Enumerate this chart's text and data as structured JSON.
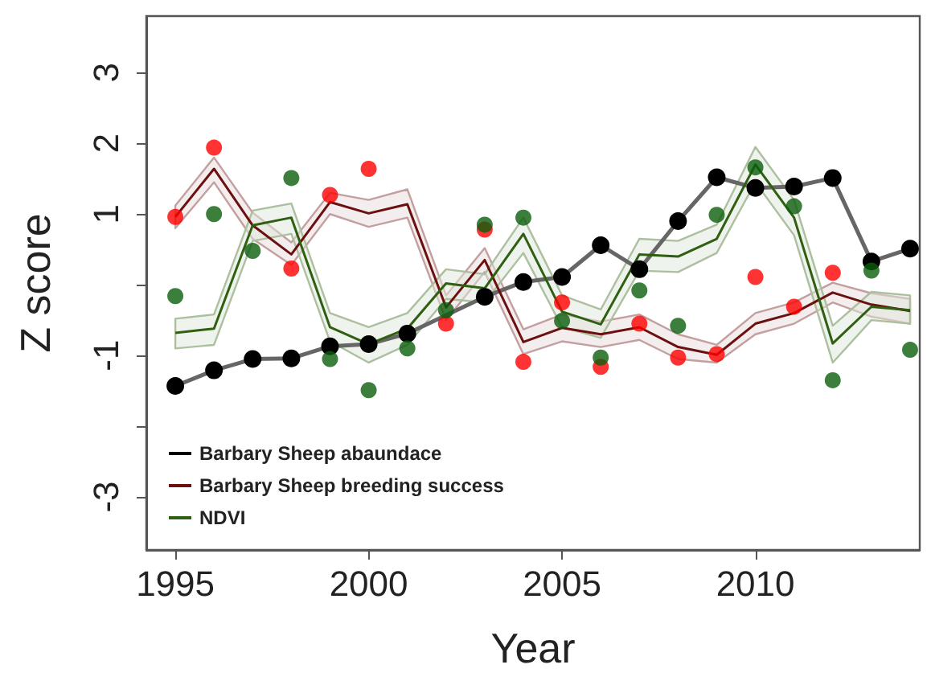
{
  "chart_data": {
    "type": "line",
    "xlabel": "Year",
    "ylabel": "Z score",
    "x": [
      1995,
      1996,
      1997,
      1998,
      1999,
      2000,
      2001,
      2002,
      2003,
      2004,
      2005,
      2006,
      2007,
      2008,
      2009,
      2010,
      2011,
      2012,
      2013,
      2014
    ],
    "xlim": [
      1994.25,
      2014.25
    ],
    "xticks": [
      1995,
      2000,
      2005,
      2010
    ],
    "ylim": [
      -3.75,
      3.8
    ],
    "yticks": [
      -3,
      {
        "value": -2,
        "label": null
      },
      -1,
      {
        "value": 0,
        "label": null
      },
      1,
      2,
      3
    ],
    "grid": false,
    "legend": "bottom left",
    "line_style": "solid",
    "series": [
      {
        "name": "Barbary Sheep abaundace",
        "marker": "circle",
        "color": "#000000",
        "values": [
          -1.43,
          -1.21,
          -1.05,
          -1.04,
          -0.87,
          -0.84,
          -0.69,
          null,
          -0.17,
          0.04,
          0.11,
          0.56,
          0.22,
          0.9,
          1.52,
          1.37,
          1.39,
          1.51,
          0.33,
          0.51
        ]
      },
      {
        "name": "Barbary Sheep breeding success",
        "marker": "none",
        "color": "#6b0f0f",
        "values": [
          0.96,
          1.64,
          0.84,
          0.43,
          1.17,
          1.01,
          1.14,
          -0.32,
          0.35,
          -0.81,
          -0.61,
          -0.7,
          -0.6,
          -0.88,
          -0.99,
          -0.55,
          -0.4,
          -0.11,
          -0.28,
          -0.37
        ],
        "lower": [
          0.8,
          1.45,
          0.65,
          0.28,
          1.0,
          0.82,
          0.95,
          -0.5,
          0.18,
          -0.98,
          -0.8,
          -0.88,
          -0.78,
          -1.05,
          -1.1,
          -0.7,
          -0.55,
          -0.25,
          -0.45,
          -0.55
        ],
        "upper": [
          1.12,
          1.8,
          1.02,
          0.6,
          1.3,
          1.2,
          1.35,
          -0.15,
          0.52,
          -0.63,
          -0.42,
          -0.52,
          -0.42,
          -0.7,
          -0.85,
          -0.4,
          -0.25,
          0.03,
          -0.12,
          -0.2
        ]
      },
      {
        "type": "scatter",
        "marker": "circle",
        "color": "#ff0000",
        "values": [
          0.96,
          1.94,
          null,
          0.23,
          1.27,
          1.64,
          null,
          -0.55,
          0.78,
          -1.09,
          -0.25,
          -1.16,
          -0.55,
          -1.03,
          -0.98,
          0.11,
          -0.31,
          0.17,
          null,
          null
        ]
      },
      {
        "name": "NDVI",
        "marker": "none",
        "color": "#2f5f10",
        "values": [
          -0.68,
          -0.62,
          0.84,
          0.95,
          -0.6,
          -0.84,
          -0.62,
          0.02,
          -0.05,
          0.72,
          -0.38,
          -0.56,
          0.43,
          0.4,
          0.65,
          1.7,
          0.95,
          -0.83,
          -0.31,
          -0.36
        ],
        "lower": [
          -0.9,
          -0.85,
          0.62,
          0.72,
          -0.8,
          -1.1,
          -0.85,
          -0.2,
          -0.25,
          0.45,
          -0.6,
          -0.75,
          0.2,
          0.18,
          0.45,
          1.45,
          0.7,
          -1.1,
          -0.5,
          -0.55
        ],
        "upper": [
          -0.48,
          -0.42,
          1.05,
          1.15,
          -0.4,
          -0.6,
          -0.4,
          0.22,
          0.15,
          0.95,
          -0.15,
          -0.35,
          0.65,
          0.62,
          0.85,
          1.95,
          1.2,
          -0.58,
          -0.1,
          -0.15
        ]
      },
      {
        "type": "scatter",
        "marker": "circle",
        "color": "#0b5e0b",
        "values": [
          -0.16,
          1.0,
          0.48,
          1.51,
          -1.05,
          -1.49,
          -0.9,
          -0.36,
          0.85,
          0.95,
          -0.51,
          -1.03,
          -0.08,
          -0.58,
          0.99,
          1.66,
          1.11,
          -1.35,
          0.2,
          -0.92
        ]
      }
    ]
  }
}
